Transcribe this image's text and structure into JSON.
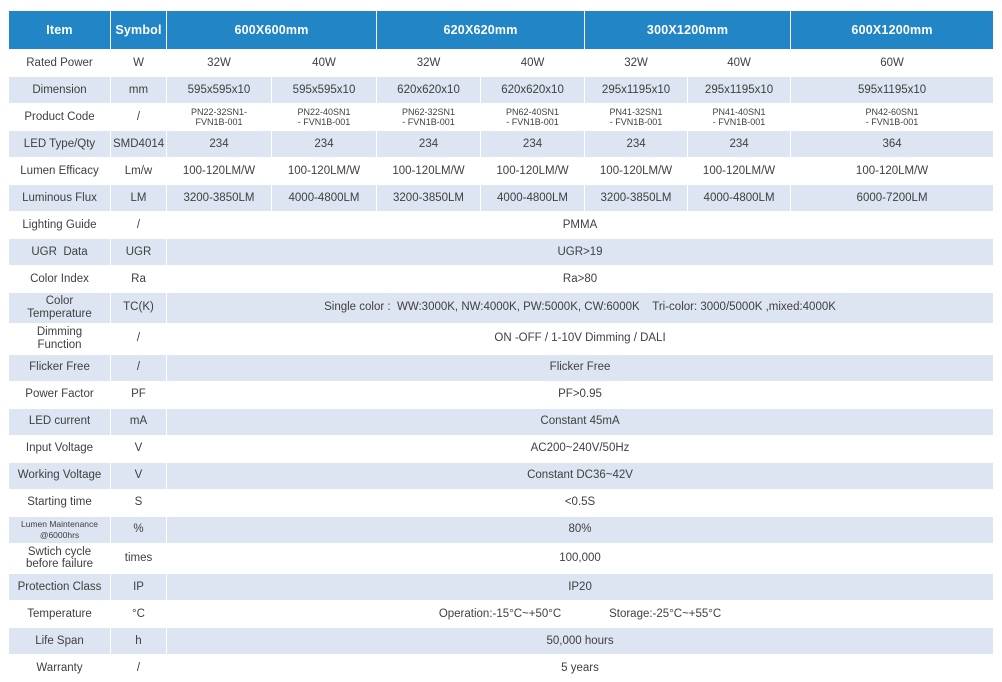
{
  "colors": {
    "header_bg": "#2285C6",
    "header_text": "#ffffff",
    "stripe_bg": "#DCE5F1",
    "body_text": "#404040"
  },
  "table": {
    "header": [
      {
        "label": "Item",
        "colspan": 1
      },
      {
        "label": "Symbol",
        "colspan": 1
      },
      {
        "label": "600X600mm",
        "colspan": 2
      },
      {
        "label": "620X620mm",
        "colspan": 2
      },
      {
        "label": "300X1200mm",
        "colspan": 2
      },
      {
        "label": "600X1200mm",
        "colspan": 1
      }
    ],
    "rows": [
      {
        "item": "Rated Power",
        "symbol": "W",
        "values": [
          "32W",
          "40W",
          "32W",
          "40W",
          "32W",
          "40W",
          "60W"
        ]
      },
      {
        "item": "Dimension",
        "symbol": "mm",
        "values": [
          "595x595x10",
          "595x595x10",
          "620x620x10",
          "620x620x10",
          "295x1195x10",
          "295x1195x10",
          "595x1195x10"
        ]
      },
      {
        "item": "Product Code",
        "symbol": "/",
        "values_small": true,
        "values": [
          "PN22-32SN1-\nFVN1B-001",
          "PN22-40SN1\n- FVN1B-001",
          "PN62-32SN1\n- FVN1B-001",
          "PN62-40SN1\n- FVN1B-001",
          "PN41-32SN1\n- FVN1B-001",
          "PN41-40SN1\n- FVN1B-001",
          "PN42-60SN1\n- FVN1B-001"
        ]
      },
      {
        "item": "LED Type/Qty",
        "symbol": "SMD4014",
        "values": [
          "234",
          "234",
          "234",
          "234",
          "234",
          "234",
          "364"
        ]
      },
      {
        "item": "Lumen Efficacy",
        "symbol": "Lm/w",
        "values": [
          "100-120LM/W",
          "100-120LM/W",
          "100-120LM/W",
          "100-120LM/W",
          "100-120LM/W",
          "100-120LM/W",
          "100-120LM/W"
        ]
      },
      {
        "item": "Luminous Flux",
        "symbol": "LM",
        "values": [
          "3200-3850LM",
          "4000-4800LM",
          "3200-3850LM",
          "4000-4800LM",
          "3200-3850LM",
          "4000-4800LM",
          "6000-7200LM"
        ]
      },
      {
        "item": "Lighting Guide",
        "symbol": "/",
        "span_value": "PMMA"
      },
      {
        "item": "UGR  Data",
        "symbol": "UGR",
        "span_value": "UGR>19"
      },
      {
        "item": "Color Index",
        "symbol": "Ra",
        "span_value": "Ra>80"
      },
      {
        "item": "Color\nTemperature",
        "symbol": "TC(K)",
        "span_value": "Single color :  WW:3000K, NW:4000K, PW:5000K, CW:6000K    Tri-color: 3000/5000K ,mixed:4000K"
      },
      {
        "item": "Dimming\nFunction",
        "symbol": "/",
        "span_value": "ON -OFF / 1-10V Dimming / DALI"
      },
      {
        "item": "Flicker Free",
        "symbol": "/",
        "span_value": "Flicker Free"
      },
      {
        "item": "Power Factor",
        "symbol": "PF",
        "span_value": "PF>0.95"
      },
      {
        "item": "LED current",
        "symbol": "mA",
        "span_value": "Constant 45mA"
      },
      {
        "item": "Input Voltage",
        "symbol": "V",
        "span_value": "AC200~240V/50Hz"
      },
      {
        "item": "Working Voltage",
        "symbol": "V",
        "span_value": "Constant DC36~42V"
      },
      {
        "item": "Starting time",
        "symbol": "S",
        "span_value": "<0.5S"
      },
      {
        "item": "Lumen Maintenance\n@6000hrs",
        "symbol": "%",
        "item_small": true,
        "span_value": "80%"
      },
      {
        "item": "Swtich cycle\nbefore failure",
        "symbol": "times",
        "span_value": "100,000"
      },
      {
        "item": "Protection Class",
        "symbol": "IP",
        "span_value": "IP20"
      },
      {
        "item": "Temperature",
        "symbol": "°C",
        "span_value": "Operation:-15°C~+50°C               Storage:-25°C~+55°C"
      },
      {
        "item": "Life Span",
        "symbol": "h",
        "span_value": "50,000 hours"
      },
      {
        "item": "Warranty",
        "symbol": "/",
        "span_value": "5 years"
      }
    ]
  }
}
